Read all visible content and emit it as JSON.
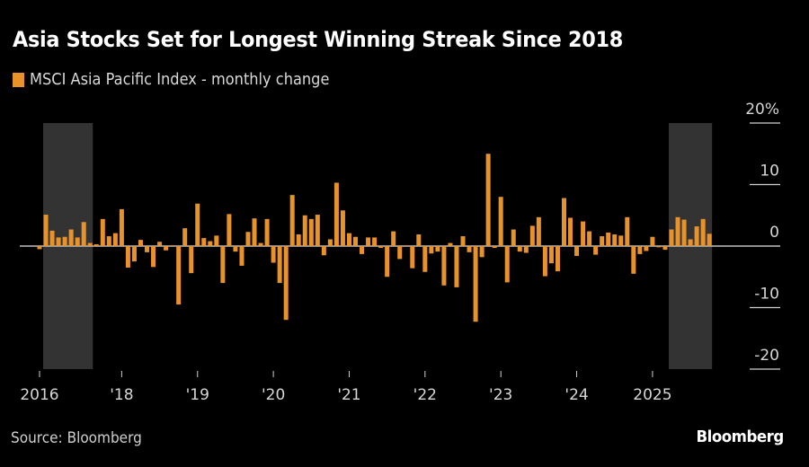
{
  "header": {
    "title": "Asia Stocks Set for Longest Winning Streak Since 2018"
  },
  "legend": {
    "label": "MSCI Asia Pacific Index - monthly change",
    "color": "#E8922A"
  },
  "footer": {
    "source": "Source: Bloomberg",
    "brand": "Bloomberg"
  },
  "colors": {
    "bar": "#E8922A",
    "background": "#000000",
    "highlight": "#333333",
    "zero_line": "#bfbfbf",
    "grid": "#d0d0d0"
  },
  "chart_data": {
    "type": "bar",
    "title": "Asia Stocks Set for Longest Winning Streak Since 2018",
    "series": [
      {
        "name": "MSCI Asia Pacific Index - monthly change",
        "unit": "%",
        "start_month": "2016-12",
        "values": [
          -0.5,
          5.1,
          2.5,
          1.4,
          1.5,
          2.7,
          1.4,
          3.9,
          0.5,
          0.3,
          4.4,
          1.6,
          2.1,
          6.0,
          -3.5,
          -2.5,
          1.0,
          -1.0,
          -3.4,
          0.7,
          -0.7,
          0.1,
          -9.5,
          2.9,
          -4.4,
          6.9,
          1.3,
          0.8,
          1.7,
          -6.0,
          5.2,
          -0.9,
          -3.2,
          2.3,
          4.5,
          0.5,
          4.4,
          -2.7,
          -6.0,
          -12.0,
          8.3,
          1.9,
          5.0,
          4.4,
          5.1,
          -1.5,
          1.1,
          10.3,
          5.8,
          2.1,
          1.5,
          -1.3,
          1.4,
          1.4,
          -0.3,
          -5.0,
          2.4,
          -2.1,
          0.1,
          -3.6,
          1.9,
          -4.2,
          -1.2,
          -0.9,
          -6.4,
          0.5,
          -6.7,
          1.6,
          -1.0,
          -12.3,
          -1.8,
          15.0,
          -0.3,
          8.0,
          -5.9,
          2.7,
          -0.9,
          -1.1,
          3.3,
          4.7,
          -4.9,
          -2.8,
          -4.1,
          7.8,
          4.6,
          -1.6,
          4.0,
          2.4,
          -1.4,
          1.6,
          2.2,
          1.9,
          1.7,
          4.7,
          -4.5,
          -1.3,
          -0.8,
          1.5,
          -0.2,
          -0.6,
          2.7,
          4.7,
          4.3,
          1.1,
          3.2,
          4.4,
          2.0
        ]
      }
    ],
    "x_ticks": [
      {
        "label": "2016",
        "index": 0
      },
      {
        "label": "'18",
        "index": 13
      },
      {
        "label": "'19",
        "index": 25
      },
      {
        "label": "'20",
        "index": 37
      },
      {
        "label": "'21",
        "index": 49
      },
      {
        "label": "'22",
        "index": 61
      },
      {
        "label": "'23",
        "index": 73
      },
      {
        "label": "'24",
        "index": 85
      },
      {
        "label": "2025",
        "index": 97
      }
    ],
    "y_ticks": [
      {
        "label": "20%",
        "value": 20
      },
      {
        "label": "10",
        "value": 10
      },
      {
        "label": "0",
        "value": 0
      },
      {
        "label": "-10",
        "value": -10
      },
      {
        "label": "-20",
        "value": -20
      }
    ],
    "ylim": [
      -20,
      20
    ],
    "highlight_ranges": [
      {
        "name": "2017 winning streak",
        "start_index": 1,
        "end_index": 8
      },
      {
        "name": "2025 winning streak",
        "start_index": 100,
        "end_index": 106
      }
    ],
    "xlabel": "",
    "ylabel": "",
    "y_axis_position": "right",
    "legend_position": "top-left",
    "grid": false
  }
}
